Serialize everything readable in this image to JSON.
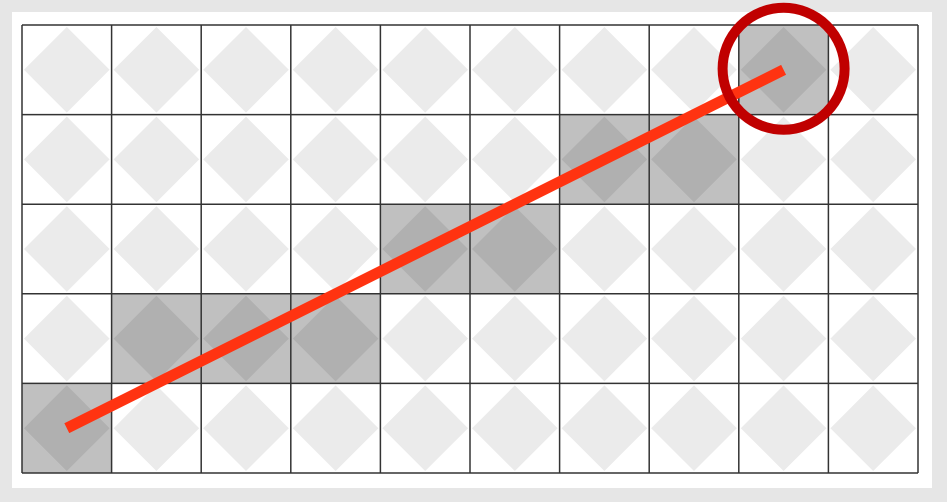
{
  "diagram": {
    "grid": {
      "columns": 10,
      "rows": 5
    },
    "cell_fill": "#ffffff",
    "diamond_fill": "#ebebeb",
    "highlight_fill": "#c0c0c0",
    "highlight_diamond_fill": "#b0b0b0",
    "grid_line_color": "#333333",
    "highlighted_cells": [
      {
        "col": 0,
        "row": 4
      },
      {
        "col": 1,
        "row": 3
      },
      {
        "col": 2,
        "row": 3
      },
      {
        "col": 3,
        "row": 3
      },
      {
        "col": 4,
        "row": 2
      },
      {
        "col": 5,
        "row": 2
      },
      {
        "col": 6,
        "row": 1
      },
      {
        "col": 7,
        "row": 1
      },
      {
        "col": 8,
        "row": 0
      }
    ],
    "line": {
      "color": "#ff3311",
      "start_cell": {
        "col": 0,
        "row": 4
      },
      "end_cell": {
        "col": 8,
        "row": 0
      }
    },
    "end_marker": {
      "shape": "circle",
      "color": "#c00000",
      "cell": {
        "col": 8,
        "row": 0
      }
    }
  }
}
